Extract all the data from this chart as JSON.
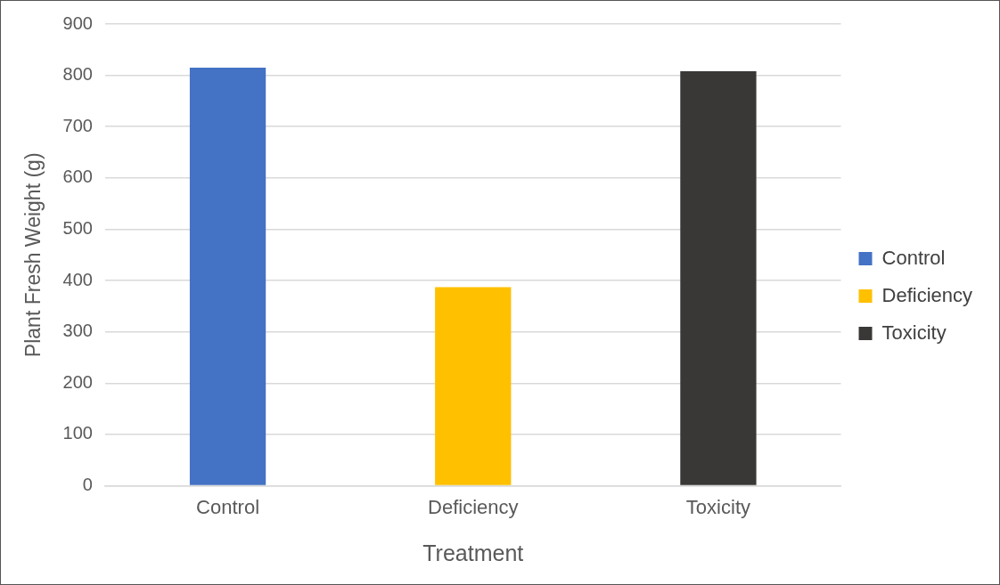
{
  "chart_data": {
    "type": "bar",
    "xlabel": "Treatment",
    "ylabel": "Plant Fresh Weight (g)",
    "categories": [
      "Control",
      "Deficiency",
      "Toxicity"
    ],
    "series": [
      {
        "name": "Control",
        "color": "#4472c4",
        "values": [
          815,
          null,
          null
        ]
      },
      {
        "name": "Deficiency",
        "color": "#ffc000",
        "values": [
          null,
          387,
          null
        ]
      },
      {
        "name": "Toxicity",
        "color": "#3a3836",
        "values": [
          null,
          null,
          808
        ]
      }
    ],
    "ylim": [
      0,
      900
    ],
    "yticks": [
      0,
      100,
      200,
      300,
      400,
      500,
      600,
      700,
      800,
      900
    ],
    "grid": "y",
    "legend": "right"
  }
}
